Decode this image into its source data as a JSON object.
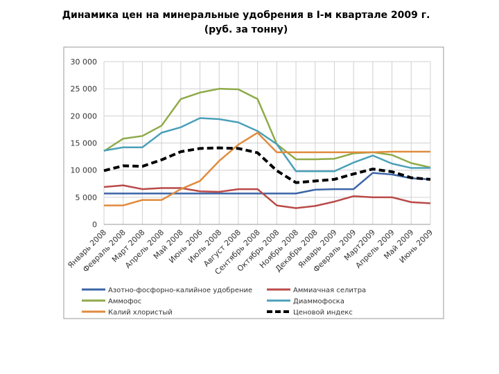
{
  "chart_data": {
    "type": "line",
    "title": "Динамика цен на минеральные удобрения  в I-м квартале 2009 г.",
    "subtitle": "(руб. за тонну)",
    "categories": [
      "Январь 2008",
      "Февраль 2008",
      "Март 2008",
      "Апрель 2008",
      "Май 2008",
      "Июнь 2006",
      "Июль 2008",
      "Август 2008",
      "Сентябрь 2008",
      "Октябрь 2008",
      "Ноябрь 2008",
      "Декабрь 2008",
      "Январь 2009",
      "Февраль 2009",
      "Март2009",
      "Апрель 2009",
      "Май 2009",
      "Июнь 2009"
    ],
    "ylim": [
      0,
      30000
    ],
    "yticks": [
      {
        "value": 0,
        "label": "0"
      },
      {
        "value": 5000,
        "label": "5 000"
      },
      {
        "value": 10000,
        "label": "10 000"
      },
      {
        "value": 15000,
        "label": "15 000"
      },
      {
        "value": 20000,
        "label": "20 000"
      },
      {
        "value": 25000,
        "label": "25 000"
      },
      {
        "value": 30000,
        "label": "30 000"
      }
    ],
    "grid": true,
    "series": [
      {
        "name": "Азотно-фосфорно-калийное удобрение",
        "color": "#3b64a7",
        "values": [
          5700,
          5700,
          5700,
          5700,
          5700,
          5700,
          5700,
          5700,
          5700,
          5700,
          5700,
          6400,
          6500,
          6500,
          9500,
          9200,
          8500,
          8300
        ]
      },
      {
        "name": "Аммиачная селитра",
        "color": "#b94a48",
        "values": [
          6900,
          7200,
          6500,
          6700,
          6700,
          6100,
          6000,
          6500,
          6500,
          3500,
          3000,
          3400,
          4200,
          5200,
          5000,
          5000,
          4100,
          3900
        ]
      },
      {
        "name": "Аммофос",
        "color": "#8faa48",
        "values": [
          13500,
          15800,
          16300,
          18200,
          23100,
          24300,
          25000,
          24900,
          23100,
          14800,
          12000,
          12000,
          12100,
          13100,
          13300,
          12800,
          11300,
          10500
        ]
      },
      {
        "name": "Диаммофоска",
        "color": "#4aa0b8",
        "values": [
          13600,
          14200,
          14200,
          16900,
          17900,
          19600,
          19400,
          18800,
          17200,
          14800,
          9800,
          9800,
          9800,
          11400,
          12700,
          11200,
          10400,
          10400
        ]
      },
      {
        "name": "Калий хлористый",
        "color": "#e08b3c",
        "values": [
          3500,
          3500,
          4500,
          4500,
          6500,
          8000,
          11700,
          14700,
          16900,
          13300,
          13300,
          13300,
          13300,
          13300,
          13300,
          13400,
          13400,
          13400
        ]
      },
      {
        "name": "Ценовой индекс",
        "color": "#000000",
        "dashed": true,
        "values": [
          9900,
          10800,
          10700,
          11900,
          13400,
          14000,
          14100,
          14000,
          13200,
          9900,
          7700,
          8000,
          8300,
          9300,
          10200,
          9700,
          8600,
          8300
        ]
      }
    ]
  }
}
